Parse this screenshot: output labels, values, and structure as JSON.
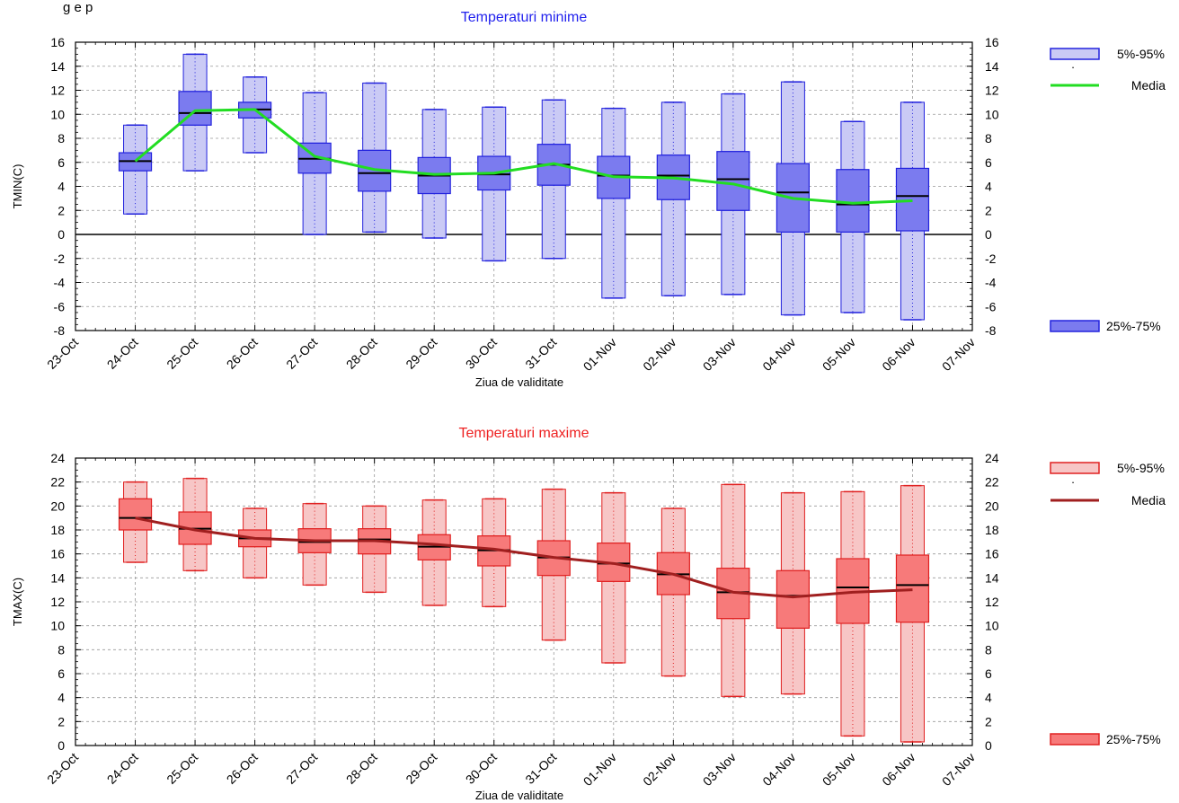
{
  "page": {
    "partial_title": "g  e    p"
  },
  "colors": {
    "tmin_box_25_75": "#7b7bef",
    "tmin_box_5_95": "#cacaf5",
    "tmin_stroke": "#2222dd",
    "tmin_mean": "#22dd22",
    "tmax_box_25_75": "#f77a7a",
    "tmax_box_5_95": "#f7c6c6",
    "tmax_stroke": "#e02020",
    "tmax_mean": "#a01f1f",
    "title_tmin": "#2222ee",
    "title_tmax": "#ee2222"
  },
  "chart_data": [
    {
      "type": "boxplot",
      "title": "Temperaturi minime",
      "xlabel": "Ziua de validitate",
      "ylabel": "TMIN(C)",
      "ylim": [
        -8,
        16
      ],
      "yticks": [
        16,
        14,
        12,
        10,
        8,
        6,
        4,
        2,
        0,
        -2,
        -4,
        -6,
        -8
      ],
      "grid": true,
      "legend_position": "right",
      "x_ticks": [
        "23-Oct",
        "24-Oct",
        "25-Oct",
        "26-Oct",
        "27-Oct",
        "28-Oct",
        "29-Oct",
        "30-Oct",
        "31-Oct",
        "01-Nov",
        "02-Nov",
        "03-Nov",
        "04-Nov",
        "05-Nov",
        "06-Nov",
        "07-Nov"
      ],
      "categories": [
        "24-Oct",
        "25-Oct",
        "26-Oct",
        "27-Oct",
        "28-Oct",
        "29-Oct",
        "30-Oct",
        "31-Oct",
        "01-Nov",
        "02-Nov",
        "03-Nov",
        "04-Nov",
        "05-Nov",
        "06-Nov"
      ],
      "p5": [
        1.7,
        5.3,
        6.8,
        0.0,
        0.2,
        -0.3,
        -2.2,
        -2.0,
        -5.3,
        -5.1,
        -5.0,
        -6.7,
        -6.5,
        -7.1
      ],
      "p25": [
        5.3,
        9.1,
        9.7,
        5.1,
        3.6,
        3.4,
        3.7,
        4.1,
        3.0,
        2.9,
        2.0,
        0.2,
        0.2,
        0.3
      ],
      "median": [
        6.1,
        10.1,
        10.4,
        6.3,
        5.1,
        4.9,
        5.0,
        5.8,
        4.9,
        4.9,
        4.6,
        3.5,
        2.5,
        3.2
      ],
      "p75": [
        6.8,
        11.9,
        11.0,
        7.6,
        7.0,
        6.4,
        6.5,
        7.5,
        6.5,
        6.6,
        6.9,
        5.9,
        5.4,
        5.5
      ],
      "p95": [
        9.1,
        15.0,
        13.1,
        11.8,
        12.6,
        10.4,
        10.6,
        11.2,
        10.5,
        11.0,
        11.7,
        12.7,
        9.4,
        11.0
      ],
      "series": [
        {
          "name": "Media",
          "values": [
            6.1,
            10.3,
            10.4,
            6.5,
            5.4,
            5.0,
            5.1,
            5.9,
            4.8,
            4.7,
            4.2,
            3.0,
            2.6,
            2.8
          ]
        }
      ],
      "legend": {
        "band_5_95": "5%-95%",
        "dot": ".",
        "mean": "Media",
        "band_25_75": "25%-75%"
      }
    },
    {
      "type": "boxplot",
      "title": "Temperaturi maxime",
      "xlabel": "Ziua de validitate",
      "ylabel": "TMAX(C)",
      "ylim": [
        0,
        24
      ],
      "yticks": [
        24,
        22,
        20,
        18,
        16,
        14,
        12,
        10,
        8,
        6,
        4,
        2,
        0
      ],
      "grid": true,
      "legend_position": "right",
      "x_ticks": [
        "23-Oct",
        "24-Oct",
        "25-Oct",
        "26-Oct",
        "27-Oct",
        "28-Oct",
        "29-Oct",
        "30-Oct",
        "31-Oct",
        "01-Nov",
        "02-Nov",
        "03-Nov",
        "04-Nov",
        "05-Nov",
        "06-Nov",
        "07-Nov"
      ],
      "categories": [
        "24-Oct",
        "25-Oct",
        "26-Oct",
        "27-Oct",
        "28-Oct",
        "29-Oct",
        "30-Oct",
        "31-Oct",
        "01-Nov",
        "02-Nov",
        "03-Nov",
        "04-Nov",
        "05-Nov",
        "06-Nov"
      ],
      "p5": [
        15.3,
        14.6,
        14.0,
        13.4,
        12.8,
        11.7,
        11.6,
        8.8,
        6.9,
        5.8,
        4.1,
        4.3,
        0.8,
        0.3
      ],
      "p25": [
        18.0,
        16.8,
        16.6,
        16.1,
        16.0,
        15.5,
        15.0,
        14.2,
        13.7,
        12.6,
        10.6,
        9.8,
        10.2,
        10.3
      ],
      "median": [
        19.0,
        18.1,
        17.3,
        17.0,
        17.2,
        16.6,
        16.3,
        15.7,
        15.2,
        14.3,
        12.8,
        12.5,
        13.2,
        13.4
      ],
      "p75": [
        20.6,
        19.5,
        18.0,
        18.1,
        18.1,
        17.6,
        17.5,
        17.1,
        16.9,
        16.1,
        14.8,
        14.6,
        15.6,
        15.9
      ],
      "p95": [
        22.0,
        22.3,
        19.8,
        20.2,
        20.0,
        20.5,
        20.6,
        21.4,
        21.1,
        19.8,
        21.8,
        21.1,
        21.2,
        21.7
      ],
      "series": [
        {
          "name": "Media",
          "values": [
            19.0,
            18.0,
            17.3,
            17.1,
            17.1,
            16.8,
            16.4,
            15.7,
            15.2,
            14.3,
            12.8,
            12.4,
            12.8,
            13.0
          ]
        }
      ],
      "legend": {
        "band_5_95": "5%-95%",
        "dot": ".",
        "mean": "Media",
        "band_25_75": "25%-75%"
      }
    }
  ]
}
